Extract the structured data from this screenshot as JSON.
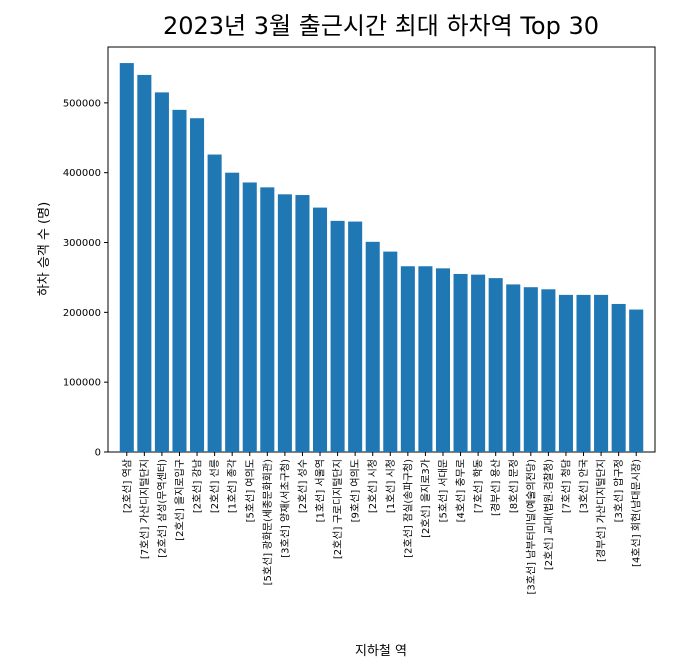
{
  "chart_data": {
    "type": "bar",
    "title": "2023년 3월 출근시간 최대 하차역 Top 30",
    "xlabel": "지하철 역",
    "ylabel": "하차 승객 수 (명)",
    "ylim": [
      0,
      580000
    ],
    "yticks": [
      0,
      100000,
      200000,
      300000,
      400000,
      500000
    ],
    "bar_color": "#1f77b4",
    "categories": [
      "[2호선]  역삼",
      "[7호선]  가산디지털단지",
      "[2호선] 삼성(무역센터)",
      "[2호선]  을지로입구",
      "[2호선]  강남",
      "[2호선]  선릉",
      "[1호선]  종각",
      "[5호선]  여의도",
      "[5호선]  광화문(세종문화회관)",
      "[3호선]  양재(서초구청)",
      "[2호선]  성수",
      "[1호선]  서울역",
      "[2호선]  구로디지털단지",
      "[9호선]  여의도",
      "[2호선]  시청",
      "[1호선]  시청",
      "[2호선]  잠실(송파구청)",
      "[2호선]  을지로3가",
      "[5호선]  서대문",
      "[4호선]  충무로",
      "[7호선]  학동",
      "[경부선]  용산",
      "[8호선]  문정",
      "[3호선]  남부터미널(예술의전당)",
      "[2호선]  교대(법원.검찰청)",
      "[7호선]  청담",
      "[3호선]  안국",
      "[경부선]  가산디지털단지",
      "[3호선]  압구정",
      "[4호선]  회현(남대문시장)"
    ],
    "values": [
      557000,
      540000,
      515000,
      490000,
      478000,
      426000,
      400000,
      386000,
      379000,
      369000,
      368000,
      350000,
      331000,
      330000,
      301000,
      287000,
      266000,
      266000,
      263000,
      255000,
      254000,
      249000,
      240000,
      236000,
      233000,
      225000,
      225000,
      225000,
      212000,
      204000
    ],
    "grid": false,
    "legend": "none"
  }
}
